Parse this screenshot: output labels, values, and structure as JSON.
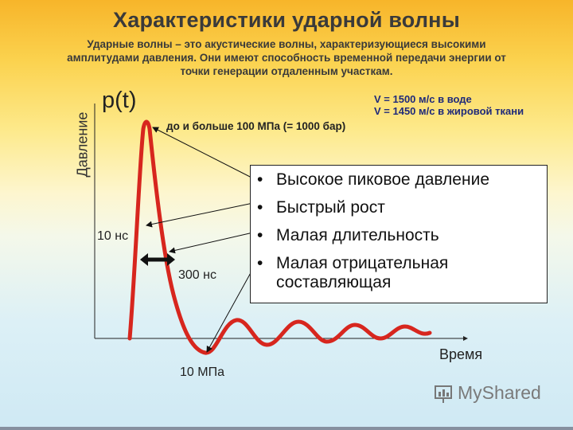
{
  "slide": {
    "title": "Характеристики ударной волны",
    "subtitle_lines": [
      "Ударные волны – это акустические волны, характеризующиеся высокими",
      "амплитудами давления. Они имеют способность временной передачи энергии от",
      "точки генерации отдаленным участкам."
    ]
  },
  "graph": {
    "y_axis_label": "Давление",
    "p_label": "p(t)",
    "x_axis_label": "Время",
    "peak_annotation": "до и больше 100 МПа  (= 1000 бар)",
    "rise_label": "10 нс",
    "duration_label": "300 нс",
    "min_label": "10 МПа",
    "speed_water": "V = 1500 м/с в воде",
    "speed_tissue": "V = 1450 м/с в жировой ткани",
    "curve_color": "#d7261e"
  },
  "properties": {
    "items": [
      "Высокое пиковое давление",
      "Быстрый рост",
      "Малая длительность",
      "Малая отрицательная составляющая"
    ]
  },
  "brand": {
    "logo_text": "MyShared"
  }
}
